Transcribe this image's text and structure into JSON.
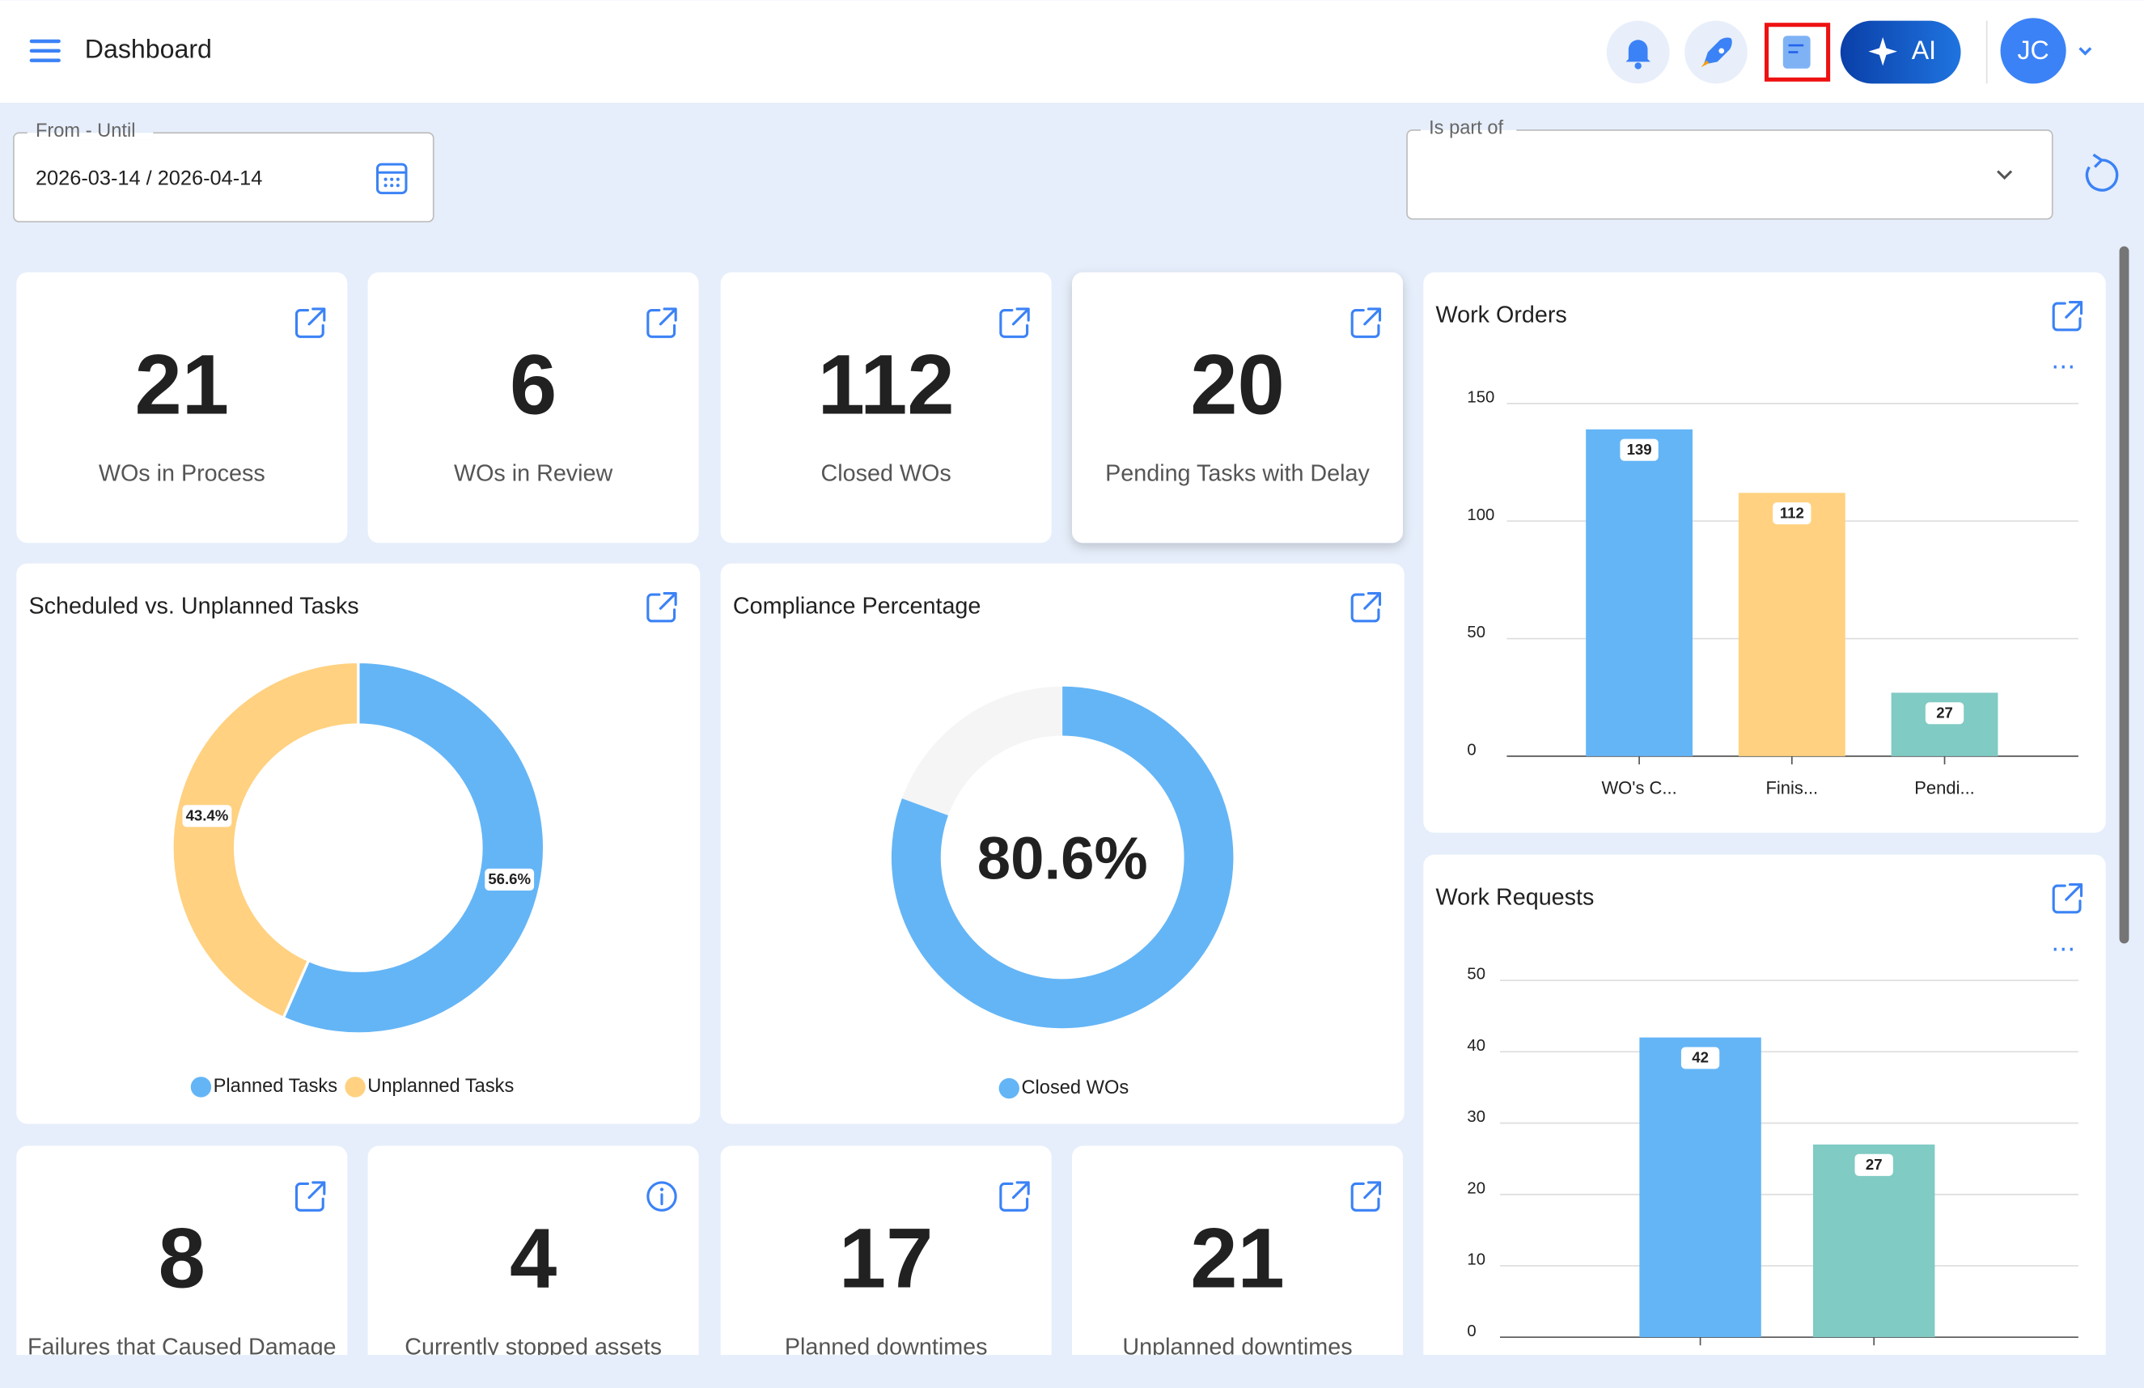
{
  "header": {
    "title": "Dashboard",
    "ai_button": "AI",
    "user_initials": "JC"
  },
  "filters": {
    "date_range": {
      "label": "From - Until",
      "value": "2026-03-14 / 2026-04-14"
    },
    "is_part_of": {
      "label": "Is part of"
    }
  },
  "kpi_cards": [
    {
      "value": 21,
      "label": "WOs in Process"
    },
    {
      "value": 6,
      "label": "WOs in Review"
    },
    {
      "value": 112,
      "label": "Closed WOs"
    },
    {
      "value": 20,
      "label": "Pending Tasks with Delay"
    },
    {
      "value": 8,
      "label": "Failures that Caused Damage"
    },
    {
      "value": 4,
      "label": "Currently stopped assets"
    },
    {
      "value": 17,
      "label": "Planned downtimes"
    },
    {
      "value": 21,
      "label": "Unplanned downtimes"
    }
  ],
  "charts": [
    {
      "type": "donut",
      "title": "Scheduled vs. Unplanned Tasks",
      "categories": [
        "Planned Tasks",
        "Unplanned Tasks"
      ],
      "values": [
        56.6,
        43.4
      ],
      "value_labels": [
        "56.6%",
        "43.4%"
      ],
      "colors": [
        "#64b5f6",
        "#ffd180"
      ]
    },
    {
      "type": "gauge",
      "title": "Compliance Percentage",
      "categories": [
        "Closed WOs"
      ],
      "values": [
        80.6
      ],
      "value_labels": [
        "80.6%"
      ],
      "color": "#64b5f6",
      "ylim": [
        0,
        100
      ]
    },
    {
      "type": "bar",
      "title": "Work Orders",
      "categories": [
        "WO's C...",
        "Finis...",
        "Pendi..."
      ],
      "values": [
        139,
        112,
        27
      ],
      "colors": [
        "#64b5f6",
        "#ffd180",
        "#80cbc4"
      ],
      "ylim": [
        0,
        150
      ],
      "yticks": [
        0,
        50,
        100,
        150
      ],
      "grid": true
    },
    {
      "type": "bar",
      "title": "Work Requests",
      "categories": [
        null,
        null
      ],
      "values": [
        42,
        27
      ],
      "colors": [
        "#64b5f6",
        "#80cbc4"
      ],
      "ylim": [
        0,
        50
      ],
      "yticks": [
        0,
        10,
        20,
        30,
        40,
        50
      ],
      "grid": true
    }
  ]
}
